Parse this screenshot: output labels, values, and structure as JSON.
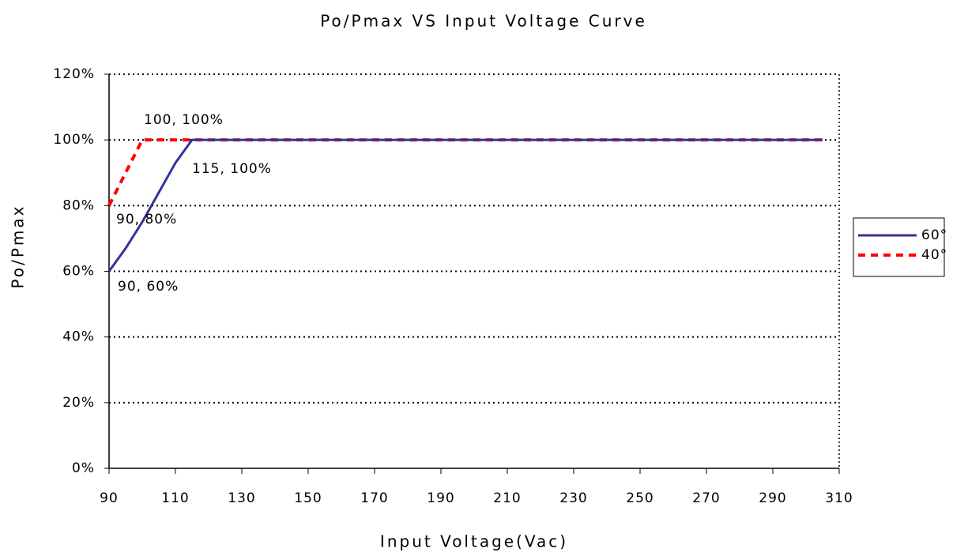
{
  "chart_data": {
    "type": "line",
    "title": "Po/Pmax VS Input Voltage Curve",
    "x_label": "Input Voltage(Vac)",
    "y_label": "Po/Pmax",
    "xlim": [
      90,
      310
    ],
    "xticks": [
      90,
      110,
      130,
      150,
      170,
      190,
      210,
      230,
      250,
      270,
      290,
      310
    ],
    "ylim": [
      0,
      120
    ],
    "yticks": [
      {
        "value": 0,
        "label": "0%"
      },
      {
        "value": 20,
        "label": "20%"
      },
      {
        "value": 40,
        "label": "40%"
      },
      {
        "value": 60,
        "label": "60%"
      },
      {
        "value": 80,
        "label": "80%"
      },
      {
        "value": 100,
        "label": "100%"
      },
      {
        "value": 120,
        "label": "120%"
      }
    ],
    "grid": true,
    "legend": "right",
    "series": [
      {
        "name": "60°",
        "color": "#333399",
        "dash": false,
        "x": [
          90,
          95,
          100,
          105,
          110,
          115,
          305
        ],
        "values": [
          60,
          67,
          75,
          84,
          93,
          100,
          100
        ]
      },
      {
        "name": "40°",
        "color": "#ff0000",
        "dash": true,
        "x": [
          90,
          100,
          305
        ],
        "values": [
          80,
          100,
          100
        ]
      }
    ],
    "annotations": [
      "100, 100%",
      "115, 100%",
      "90, 80%",
      "90, 60%"
    ]
  }
}
